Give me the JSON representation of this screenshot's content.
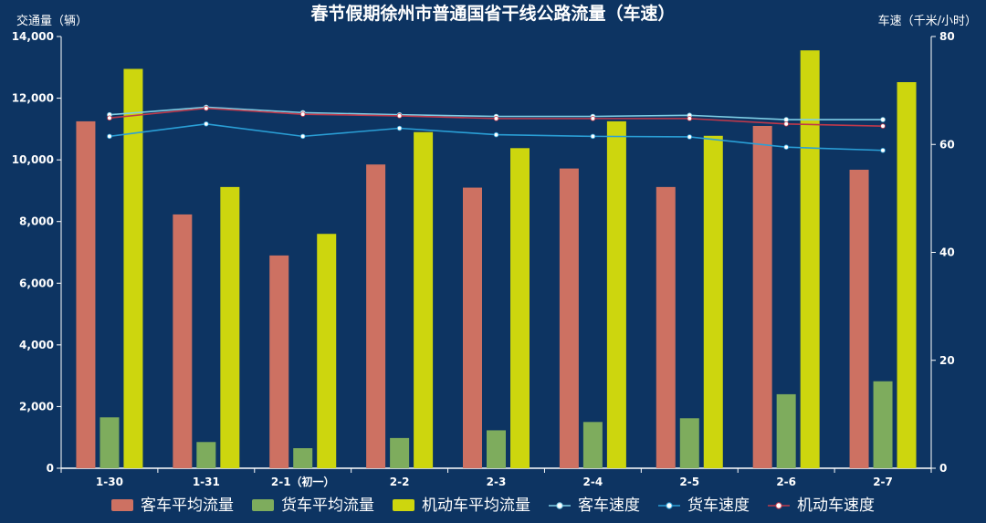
{
  "chart_data": {
    "type": "bar",
    "title": "春节假期徐州市普通国省干线公路流量（车速）",
    "ylabel_left": "交通量（辆）",
    "ylabel_right": "车速（千米/小时）",
    "categories": [
      "1-30",
      "1-31",
      "2-1（初一）",
      "2-2",
      "2-3",
      "2-4",
      "2-5",
      "2-6",
      "2-7"
    ],
    "ylim_left": [
      0,
      14000
    ],
    "ylim_right": [
      0,
      80
    ],
    "yticks_left": [
      "0",
      "2,000",
      "4,000",
      "6,000",
      "8,000",
      "10,000",
      "12,000",
      "14,000"
    ],
    "yticks_right": [
      "0",
      "20",
      "40",
      "60",
      "80"
    ],
    "bar_series": [
      {
        "name": "客车平均流量",
        "color": "#cd7162",
        "values": [
          11250,
          8230,
          6900,
          9850,
          9100,
          9720,
          9120,
          11100,
          9680
        ]
      },
      {
        "name": "货车平均流量",
        "color": "#7eac5d",
        "values": [
          1650,
          850,
          650,
          980,
          1230,
          1500,
          1620,
          2400,
          2820
        ]
      },
      {
        "name": "机动车平均流量",
        "color": "#cdd60e",
        "values": [
          12950,
          9120,
          7600,
          10900,
          10380,
          11250,
          10780,
          13550,
          12520
        ]
      }
    ],
    "line_series": [
      {
        "name": "客车速度",
        "color": "#7fcfe6",
        "values": [
          65.5,
          66.9,
          65.9,
          65.5,
          65.2,
          65.2,
          65.4,
          64.6,
          64.6
        ]
      },
      {
        "name": "货车速度",
        "color": "#2a9fd6",
        "values": [
          61.5,
          63.8,
          61.5,
          63.0,
          61.8,
          61.5,
          61.4,
          59.5,
          58.9
        ]
      },
      {
        "name": "机动车速度",
        "color": "#c0394b",
        "values": [
          64.9,
          66.7,
          65.6,
          65.3,
          64.8,
          64.8,
          64.8,
          63.8,
          63.4
        ]
      }
    ],
    "legend_position": "bottom"
  },
  "legend_label_tokens": {
    "客车平均流量": "legend-passenger-volume",
    "货车平均流量": "legend-freight-volume",
    "机动车平均流量": "legend-motor-volume",
    "客车速度": "legend-passenger-speed",
    "货车速度": "legend-freight-speed",
    "机动车速度": "legend-motor-speed"
  }
}
